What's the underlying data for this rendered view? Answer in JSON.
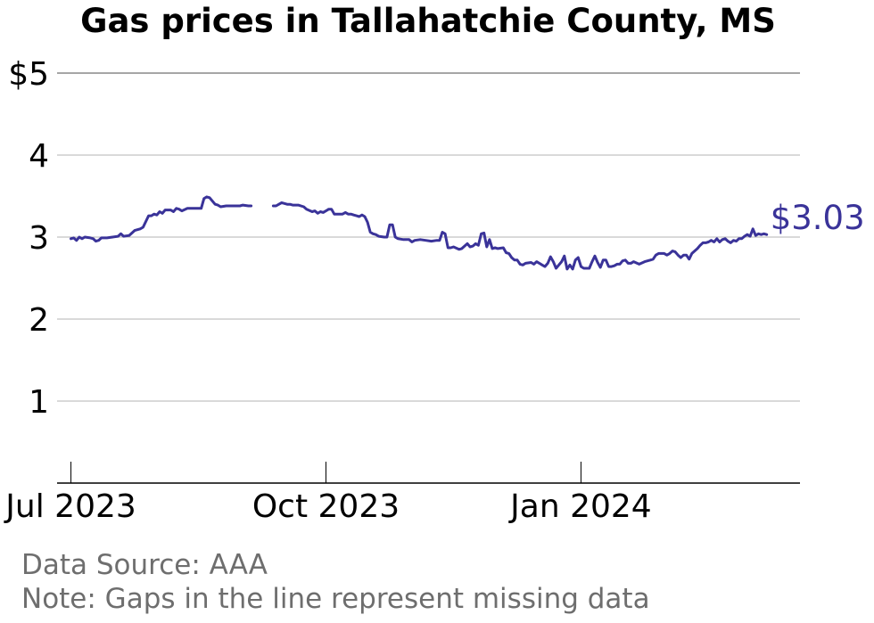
{
  "title": "Gas prices in Tallahatchie County, MS",
  "footer": {
    "source": "Data Source: AAA",
    "note": "Note: Gaps in the line represent missing data"
  },
  "colors": {
    "line": "#3a3399",
    "grid": "#b3b3b3",
    "axis": "#000000",
    "footer": "#6e6e6e"
  },
  "chart_data": {
    "type": "line",
    "title": "Gas prices in Tallahatchie County, MS",
    "xlabel": "",
    "ylabel": "",
    "ylim": [
      0,
      5
    ],
    "xlim": [
      "2023-06-26",
      "2024-03-20"
    ],
    "yticks": [
      {
        "value": 1,
        "label": "1"
      },
      {
        "value": 2,
        "label": "2"
      },
      {
        "value": 3,
        "label": "3"
      },
      {
        "value": 4,
        "label": "4"
      },
      {
        "value": 5,
        "label": "$5"
      }
    ],
    "xticks": [
      {
        "date": "2023-07-01",
        "label": "Jul 2023"
      },
      {
        "date": "2023-10-01",
        "label": "Oct 2023"
      },
      {
        "date": "2024-01-01",
        "label": "Jan 2024"
      }
    ],
    "grid": true,
    "end_label": "$3.03",
    "series": [
      {
        "segments": [
          [
            [
              "2023-07-01",
              2.98
            ],
            [
              "2023-07-02",
              2.99
            ],
            [
              "2023-07-03",
              2.96
            ],
            [
              "2023-07-04",
              3.0
            ],
            [
              "2023-07-05",
              2.98
            ],
            [
              "2023-07-06",
              3.0
            ],
            [
              "2023-07-08",
              2.99
            ],
            [
              "2023-07-09",
              2.98
            ],
            [
              "2023-07-10",
              2.95
            ],
            [
              "2023-07-11",
              2.96
            ],
            [
              "2023-07-12",
              2.99
            ],
            [
              "2023-07-14",
              2.99
            ],
            [
              "2023-07-16",
              3.0
            ],
            [
              "2023-07-18",
              3.01
            ],
            [
              "2023-07-19",
              3.04
            ],
            [
              "2023-07-20",
              3.01
            ],
            [
              "2023-07-22",
              3.02
            ],
            [
              "2023-07-24",
              3.08
            ],
            [
              "2023-07-26",
              3.1
            ],
            [
              "2023-07-27",
              3.12
            ],
            [
              "2023-07-29",
              3.26
            ],
            [
              "2023-07-30",
              3.26
            ],
            [
              "2023-07-31",
              3.28
            ],
            [
              "2023-08-01",
              3.27
            ],
            [
              "2023-08-02",
              3.31
            ],
            [
              "2023-08-03",
              3.29
            ],
            [
              "2023-08-04",
              3.33
            ],
            [
              "2023-08-06",
              3.33
            ],
            [
              "2023-08-07",
              3.31
            ],
            [
              "2023-08-08",
              3.35
            ],
            [
              "2023-08-09",
              3.34
            ],
            [
              "2023-08-10",
              3.32
            ],
            [
              "2023-08-12",
              3.35
            ],
            [
              "2023-08-15",
              3.35
            ],
            [
              "2023-08-17",
              3.35
            ],
            [
              "2023-08-18",
              3.47
            ],
            [
              "2023-08-19",
              3.49
            ],
            [
              "2023-08-20",
              3.48
            ],
            [
              "2023-08-22",
              3.4
            ],
            [
              "2023-08-23",
              3.39
            ],
            [
              "2023-08-24",
              3.37
            ],
            [
              "2023-08-26",
              3.38
            ],
            [
              "2023-08-28",
              3.38
            ],
            [
              "2023-08-30",
              3.38
            ],
            [
              "2023-08-31",
              3.38
            ],
            [
              "2023-09-01",
              3.39
            ],
            [
              "2023-09-03",
              3.38
            ],
            [
              "2023-09-04",
              3.38
            ]
          ],
          [
            [
              "2023-09-12",
              3.38
            ],
            [
              "2023-09-13",
              3.38
            ],
            [
              "2023-09-14",
              3.4
            ],
            [
              "2023-09-15",
              3.42
            ],
            [
              "2023-09-17",
              3.4
            ],
            [
              "2023-09-18",
              3.4
            ],
            [
              "2023-09-19",
              3.39
            ],
            [
              "2023-09-21",
              3.39
            ],
            [
              "2023-09-23",
              3.37
            ],
            [
              "2023-09-24",
              3.34
            ],
            [
              "2023-09-26",
              3.31
            ],
            [
              "2023-09-27",
              3.32
            ],
            [
              "2023-09-28",
              3.29
            ],
            [
              "2023-09-29",
              3.31
            ],
            [
              "2023-09-30",
              3.3
            ],
            [
              "2023-10-01",
              3.32
            ],
            [
              "2023-10-02",
              3.34
            ],
            [
              "2023-10-03",
              3.34
            ],
            [
              "2023-10-04",
              3.28
            ],
            [
              "2023-10-05",
              3.28
            ],
            [
              "2023-10-07",
              3.28
            ],
            [
              "2023-10-08",
              3.3
            ],
            [
              "2023-10-09",
              3.28
            ],
            [
              "2023-10-10",
              3.28
            ],
            [
              "2023-10-11",
              3.27
            ],
            [
              "2023-10-12",
              3.26
            ],
            [
              "2023-10-13",
              3.25
            ],
            [
              "2023-10-14",
              3.27
            ],
            [
              "2023-10-15",
              3.25
            ],
            [
              "2023-10-16",
              3.18
            ],
            [
              "2023-10-17",
              3.06
            ],
            [
              "2023-10-18",
              3.04
            ],
            [
              "2023-10-19",
              3.03
            ],
            [
              "2023-10-20",
              3.01
            ],
            [
              "2023-10-22",
              3.0
            ],
            [
              "2023-10-23",
              3.0
            ],
            [
              "2023-10-24",
              3.15
            ],
            [
              "2023-10-25",
              3.15
            ],
            [
              "2023-10-26",
              3.0
            ],
            [
              "2023-10-27",
              2.98
            ],
            [
              "2023-10-29",
              2.97
            ],
            [
              "2023-10-31",
              2.97
            ],
            [
              "2023-11-01",
              2.94
            ],
            [
              "2023-11-02",
              2.96
            ],
            [
              "2023-11-04",
              2.97
            ],
            [
              "2023-11-06",
              2.96
            ],
            [
              "2023-11-08",
              2.95
            ],
            [
              "2023-11-10",
              2.96
            ],
            [
              "2023-11-11",
              2.96
            ],
            [
              "2023-11-12",
              3.06
            ],
            [
              "2023-11-13",
              3.04
            ],
            [
              "2023-11-14",
              2.87
            ],
            [
              "2023-11-15",
              2.87
            ],
            [
              "2023-11-16",
              2.88
            ],
            [
              "2023-11-18",
              2.85
            ],
            [
              "2023-11-19",
              2.86
            ],
            [
              "2023-11-20",
              2.89
            ],
            [
              "2023-11-21",
              2.92
            ],
            [
              "2023-11-22",
              2.88
            ],
            [
              "2023-11-23",
              2.89
            ],
            [
              "2023-11-24",
              2.92
            ],
            [
              "2023-11-25",
              2.9
            ],
            [
              "2023-11-26",
              3.04
            ],
            [
              "2023-11-27",
              3.05
            ],
            [
              "2023-11-28",
              2.88
            ],
            [
              "2023-11-29",
              2.97
            ],
            [
              "2023-11-30",
              2.86
            ],
            [
              "2023-12-01",
              2.87
            ],
            [
              "2023-12-02",
              2.86
            ],
            [
              "2023-12-04",
              2.87
            ],
            [
              "2023-12-05",
              2.81
            ],
            [
              "2023-12-06",
              2.8
            ],
            [
              "2023-12-07",
              2.75
            ],
            [
              "2023-12-08",
              2.72
            ],
            [
              "2023-12-09",
              2.72
            ],
            [
              "2023-12-10",
              2.67
            ],
            [
              "2023-12-11",
              2.66
            ],
            [
              "2023-12-12",
              2.68
            ],
            [
              "2023-12-14",
              2.69
            ],
            [
              "2023-12-15",
              2.67
            ],
            [
              "2023-12-16",
              2.7
            ],
            [
              "2023-12-17",
              2.68
            ],
            [
              "2023-12-18",
              2.66
            ],
            [
              "2023-12-19",
              2.64
            ],
            [
              "2023-12-20",
              2.68
            ],
            [
              "2023-12-21",
              2.76
            ],
            [
              "2023-12-22",
              2.7
            ],
            [
              "2023-12-23",
              2.62
            ],
            [
              "2023-12-24",
              2.66
            ],
            [
              "2023-12-25",
              2.7
            ],
            [
              "2023-12-26",
              2.77
            ],
            [
              "2023-12-27",
              2.61
            ],
            [
              "2023-12-28",
              2.66
            ],
            [
              "2023-12-29",
              2.61
            ],
            [
              "2023-12-30",
              2.72
            ],
            [
              "2023-12-31",
              2.75
            ],
            [
              "2024-01-01",
              2.64
            ],
            [
              "2024-01-02",
              2.62
            ],
            [
              "2024-01-04",
              2.62
            ],
            [
              "2024-01-05",
              2.7
            ],
            [
              "2024-01-06",
              2.77
            ],
            [
              "2024-01-07",
              2.69
            ],
            [
              "2024-01-08",
              2.63
            ],
            [
              "2024-01-09",
              2.72
            ],
            [
              "2024-01-10",
              2.72
            ],
            [
              "2024-01-11",
              2.64
            ],
            [
              "2024-01-12",
              2.64
            ],
            [
              "2024-01-13",
              2.65
            ],
            [
              "2024-01-14",
              2.67
            ],
            [
              "2024-01-15",
              2.67
            ],
            [
              "2024-01-16",
              2.71
            ],
            [
              "2024-01-17",
              2.72
            ],
            [
              "2024-01-18",
              2.68
            ],
            [
              "2024-01-19",
              2.68
            ],
            [
              "2024-01-20",
              2.7
            ],
            [
              "2024-01-22",
              2.67
            ],
            [
              "2024-01-24",
              2.7
            ],
            [
              "2024-01-26",
              2.72
            ],
            [
              "2024-01-27",
              2.73
            ],
            [
              "2024-01-28",
              2.78
            ],
            [
              "2024-01-29",
              2.8
            ],
            [
              "2024-01-30",
              2.8
            ],
            [
              "2024-01-31",
              2.8
            ],
            [
              "2024-02-01",
              2.78
            ],
            [
              "2024-02-02",
              2.8
            ],
            [
              "2024-02-03",
              2.83
            ],
            [
              "2024-02-04",
              2.82
            ],
            [
              "2024-02-05",
              2.78
            ],
            [
              "2024-02-06",
              2.75
            ],
            [
              "2024-02-07",
              2.78
            ],
            [
              "2024-02-08",
              2.78
            ],
            [
              "2024-02-09",
              2.73
            ],
            [
              "2024-02-10",
              2.8
            ],
            [
              "2024-02-11",
              2.83
            ],
            [
              "2024-02-12",
              2.86
            ],
            [
              "2024-02-13",
              2.9
            ],
            [
              "2024-02-14",
              2.93
            ],
            [
              "2024-02-15",
              2.93
            ],
            [
              "2024-02-16",
              2.94
            ],
            [
              "2024-02-17",
              2.96
            ],
            [
              "2024-02-18",
              2.94
            ],
            [
              "2024-02-19",
              2.98
            ],
            [
              "2024-02-20",
              2.94
            ],
            [
              "2024-02-21",
              2.97
            ],
            [
              "2024-02-22",
              2.98
            ],
            [
              "2024-02-23",
              2.95
            ],
            [
              "2024-02-24",
              2.93
            ],
            [
              "2024-02-25",
              2.96
            ],
            [
              "2024-02-26",
              2.95
            ],
            [
              "2024-02-27",
              2.98
            ],
            [
              "2024-02-28",
              2.98
            ],
            [
              "2024-02-29",
              3.01
            ],
            [
              "2024-03-01",
              3.03
            ],
            [
              "2024-03-02",
              3.01
            ],
            [
              "2024-03-03",
              3.1
            ],
            [
              "2024-03-04",
              3.02
            ],
            [
              "2024-03-05",
              3.04
            ],
            [
              "2024-03-06",
              3.03
            ],
            [
              "2024-03-07",
              3.04
            ],
            [
              "2024-03-08",
              3.03
            ]
          ]
        ]
      }
    ]
  }
}
